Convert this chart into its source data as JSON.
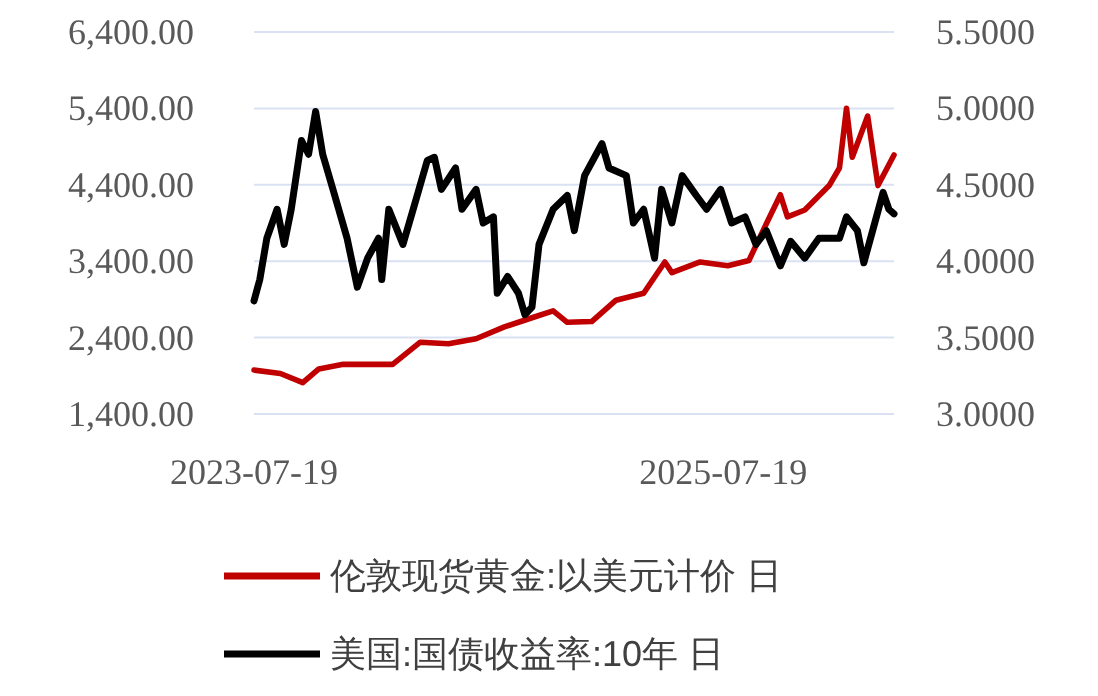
{
  "chart_data": {
    "type": "line",
    "xlim": [
      "2023-07-19",
      "2026-04-11"
    ],
    "xticks": [
      {
        "value": "2023-07-19",
        "label": "2023-07-19"
      },
      {
        "value": "2025-07-19",
        "label": "2025-07-19"
      }
    ],
    "ylim": [
      1400,
      6400
    ],
    "yticks": [
      {
        "value": 1400,
        "label": "1,400.00"
      },
      {
        "value": 2400,
        "label": "2,400.00"
      },
      {
        "value": 3400,
        "label": "3,400.00"
      },
      {
        "value": 4400,
        "label": "4,400.00"
      },
      {
        "value": 5400,
        "label": "5,400.00"
      },
      {
        "value": 6400,
        "label": "6,400.00"
      }
    ],
    "y2lim": [
      3.0,
      5.5
    ],
    "y2ticks": [
      {
        "value": 3.0,
        "label": "3.0000"
      },
      {
        "value": 3.5,
        "label": "3.5000"
      },
      {
        "value": 4.0,
        "label": "4.0000"
      },
      {
        "value": 4.5,
        "label": "4.5000"
      },
      {
        "value": 5.0,
        "label": "5.0000"
      },
      {
        "value": 5.5,
        "label": "5.5000"
      }
    ],
    "grid": "y",
    "legend": "bottom",
    "marker": "none",
    "line_style": "solid",
    "series": [
      {
        "name": "伦敦现货黄金:以美元计价 日",
        "color": "#c00000",
        "axis": "y",
        "x": [
          "2023-07-19",
          "2023-08-29",
          "2023-10-03",
          "2023-10-28",
          "2023-12-05",
          "2024-01-07",
          "2024-02-20",
          "2024-04-03",
          "2024-05-17",
          "2024-06-29",
          "2024-08-12",
          "2024-09-24",
          "2024-10-27",
          "2024-11-18",
          "2024-12-26",
          "2025-02-02",
          "2025-03-17",
          "2025-04-19",
          "2025-04-30",
          "2025-06-13",
          "2025-07-26",
          "2025-08-28",
          "2025-09-19",
          "2025-10-16",
          "2025-10-27",
          "2025-11-23",
          "2025-12-31",
          "2026-01-16",
          "2026-01-27",
          "2026-02-05",
          "2026-03-01",
          "2026-03-17",
          "2026-04-11"
        ],
        "values": [
          1975,
          1930,
          1810,
          1990,
          2050,
          2050,
          2050,
          2340,
          2320,
          2385,
          2540,
          2660,
          2750,
          2600,
          2610,
          2890,
          2980,
          3390,
          3250,
          3390,
          3340,
          3410,
          3800,
          4270,
          3980,
          4070,
          4390,
          4620,
          5400,
          4760,
          5300,
          4390,
          4790
        ]
      },
      {
        "name": "美国:国债收益率:10年 日",
        "color": "#000000",
        "axis": "y2",
        "x": [
          "2023-07-19",
          "2023-07-28",
          "2023-08-08",
          "2023-08-24",
          "2023-09-04",
          "2023-09-15",
          "2023-10-01",
          "2023-10-12",
          "2023-10-23",
          "2023-11-03",
          "2023-11-19",
          "2023-12-11",
          "2023-12-27",
          "2024-01-12",
          "2024-01-29",
          "2024-02-03",
          "2024-02-14",
          "2024-03-07",
          "2024-03-23",
          "2024-04-14",
          "2024-04-25",
          "2024-05-06",
          "2024-05-28",
          "2024-06-07",
          "2024-06-29",
          "2024-07-10",
          "2024-07-26",
          "2024-08-01",
          "2024-08-17",
          "2024-09-03",
          "2024-09-13",
          "2024-09-24",
          "2024-10-05",
          "2024-10-27",
          "2024-11-18",
          "2024-11-29",
          "2024-12-15",
          "2025-01-11",
          "2025-01-22",
          "2025-02-18",
          "2025-03-01",
          "2025-03-17",
          "2025-04-03",
          "2025-04-14",
          "2025-04-30",
          "2025-05-16",
          "2025-06-07",
          "2025-06-23",
          "2025-07-15",
          "2025-08-01",
          "2025-08-22",
          "2025-09-08",
          "2025-09-24",
          "2025-10-16",
          "2025-11-01",
          "2025-11-23",
          "2025-12-15",
          "2026-01-16",
          "2026-01-27",
          "2026-02-13",
          "2026-02-23",
          "2026-03-12",
          "2026-03-25",
          "2026-04-03",
          "2026-04-11"
        ],
        "values": [
          3.74,
          3.88,
          4.15,
          4.34,
          4.11,
          4.34,
          4.79,
          4.7,
          4.98,
          4.7,
          4.47,
          4.15,
          3.83,
          4.02,
          4.15,
          3.88,
          4.34,
          4.11,
          4.34,
          4.66,
          4.68,
          4.47,
          4.61,
          4.34,
          4.47,
          4.25,
          4.29,
          3.79,
          3.9,
          3.79,
          3.65,
          3.7,
          4.11,
          4.34,
          4.43,
          4.2,
          4.56,
          4.77,
          4.61,
          4.56,
          4.25,
          4.34,
          4.02,
          4.47,
          4.25,
          4.56,
          4.43,
          4.34,
          4.47,
          4.25,
          4.29,
          4.11,
          4.2,
          3.97,
          4.13,
          4.02,
          4.15,
          4.15,
          4.29,
          4.2,
          3.99,
          4.25,
          4.45,
          4.34,
          4.31
        ]
      }
    ]
  }
}
